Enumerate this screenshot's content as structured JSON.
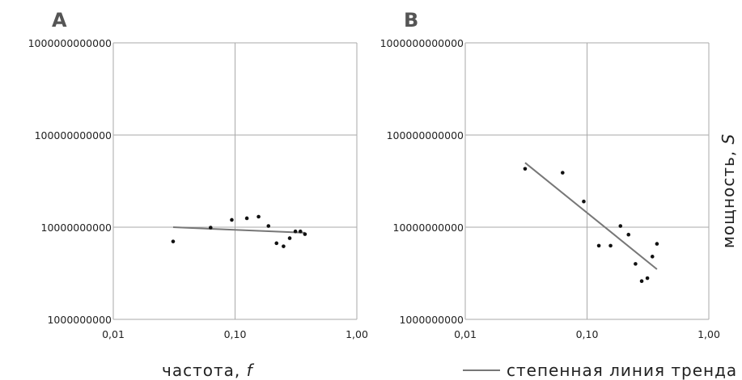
{
  "chart_data": [
    {
      "type": "scatter",
      "panel_label": "A",
      "x_scale": "log",
      "y_scale": "log",
      "xlim": [
        0.01,
        1.0
      ],
      "ylim": [
        1000000000,
        1000000000000
      ],
      "x_ticks": [
        0.01,
        0.1,
        1.0
      ],
      "x_tick_labels": [
        "0,01",
        "0,10",
        "1,00"
      ],
      "y_ticks": [
        1000000000,
        10000000000,
        100000000000,
        1000000000000
      ],
      "y_tick_labels": [
        "1000000000",
        "10000000000",
        "100000000000",
        "1000000000000"
      ],
      "grid": true,
      "series": [
        {
          "x": [
            0.031,
            0.063,
            0.094,
            0.125,
            0.156,
            0.188,
            0.219,
            0.25,
            0.281,
            0.313,
            0.344,
            0.375
          ],
          "y": [
            7000000000,
            9900000000,
            12000000000,
            12500000000,
            13000000000,
            10300000000,
            6700000000,
            6200000000,
            7600000000,
            9000000000,
            9000000000,
            8400000000
          ],
          "color": "#111111"
        }
      ],
      "trendline": {
        "x": [
          0.031,
          0.375
        ],
        "y": [
          10000000000,
          8700000000
        ],
        "color": "#777777"
      }
    },
    {
      "type": "scatter",
      "panel_label": "B",
      "x_scale": "log",
      "y_scale": "log",
      "xlim": [
        0.01,
        1.0
      ],
      "ylim": [
        1000000000,
        1000000000000
      ],
      "x_ticks": [
        0.01,
        0.1,
        1.0
      ],
      "x_tick_labels": [
        "0,01",
        "0,10",
        "1,00"
      ],
      "y_ticks": [
        1000000000,
        10000000000,
        100000000000,
        1000000000000
      ],
      "y_tick_labels": [
        "1000000000",
        "10000000000",
        "100000000000",
        "1000000000000"
      ],
      "grid": true,
      "series": [
        {
          "x": [
            0.031,
            0.063,
            0.094,
            0.125,
            0.156,
            0.188,
            0.219,
            0.25,
            0.281,
            0.313,
            0.344,
            0.375
          ],
          "y": [
            43000000000,
            39000000000,
            19000000000,
            6300000000,
            6300000000,
            10300000000,
            8300000000,
            4000000000,
            2600000000,
            2800000000,
            4800000000,
            6600000000
          ],
          "color": "#111111"
        }
      ],
      "trendline": {
        "x": [
          0.031,
          0.375
        ],
        "y": [
          50000000000,
          3500000000
        ],
        "color": "#777777"
      }
    }
  ],
  "xlabel": "частота, ",
  "xlabel_symbol": "f",
  "ylabel": "мощность, ",
  "ylabel_symbol": "S",
  "legend_label": "степенная линия тренда",
  "colors": {
    "grid": "#aaaaaa",
    "trend": "#777777",
    "points": "#111111",
    "letters": "#555555"
  }
}
